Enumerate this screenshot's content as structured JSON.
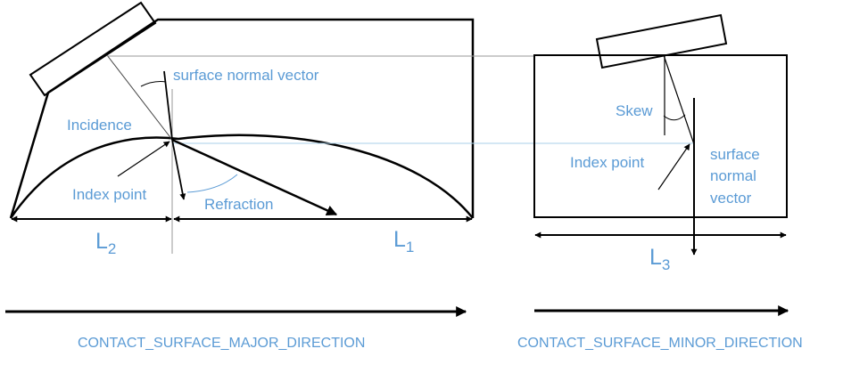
{
  "colors": {
    "label": "#5b9bd5",
    "line": "#000000",
    "guide": "#9a9a9a",
    "guide_light": "#a9cfe8"
  },
  "major": {
    "surface_normal_vector": "surface normal vector",
    "incidence": "Incidence",
    "index_point": "Index point",
    "refraction": "Refraction",
    "L2": {
      "base": "L",
      "sub": "2"
    },
    "L1": {
      "base": "L",
      "sub": "1"
    },
    "direction_label": "CONTACT_SURFACE_MAJOR_DIRECTION"
  },
  "minor": {
    "skew": "Skew",
    "index_point": "Index point",
    "surface_normal_vector_lines": [
      "surface",
      "normal",
      "vector"
    ],
    "L3": {
      "base": "L",
      "sub": "3"
    },
    "direction_label": "CONTACT_SURFACE_MINOR_DIRECTION"
  }
}
